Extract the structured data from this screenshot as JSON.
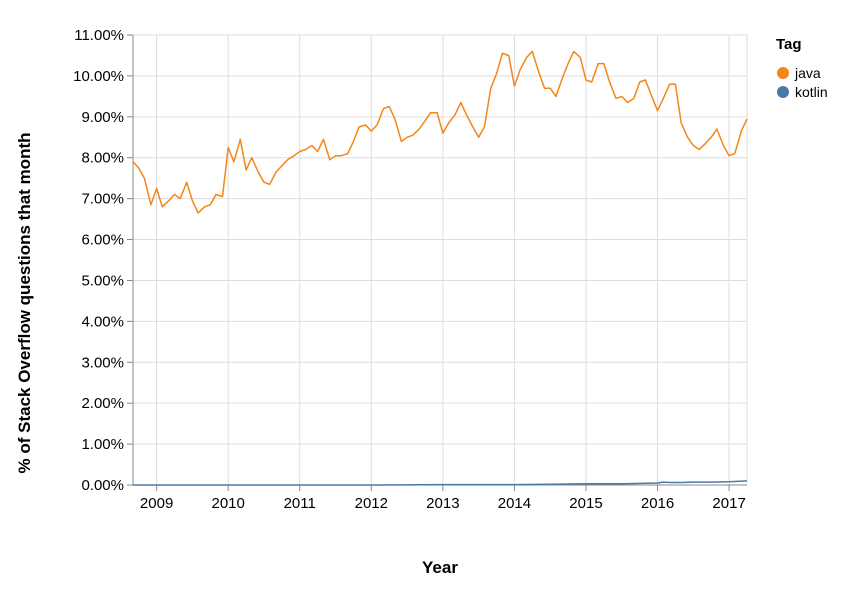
{
  "chart_data": {
    "type": "line",
    "title": "",
    "xlabel": "Year",
    "ylabel": "% of Stack Overflow questions that month",
    "ylim": [
      0,
      11
    ],
    "xlim": [
      2008.67,
      2017.25
    ],
    "y_ticks": [
      "0.00%",
      "1.00%",
      "2.00%",
      "3.00%",
      "4.00%",
      "5.00%",
      "6.00%",
      "7.00%",
      "8.00%",
      "9.00%",
      "10.00%",
      "11.00%"
    ],
    "x_ticks": [
      "2009",
      "2010",
      "2011",
      "2012",
      "2013",
      "2014",
      "2015",
      "2016",
      "2017"
    ],
    "grid": true,
    "legend": {
      "title": "Tag",
      "position": "top-right"
    },
    "series": [
      {
        "name": "java",
        "color": "#f58518",
        "x": [
          2008.67,
          2008.75,
          2008.83,
          2008.92,
          2009.0,
          2009.08,
          2009.17,
          2009.25,
          2009.33,
          2009.42,
          2009.5,
          2009.58,
          2009.67,
          2009.75,
          2009.83,
          2009.92,
          2010.0,
          2010.08,
          2010.17,
          2010.25,
          2010.33,
          2010.42,
          2010.5,
          2010.58,
          2010.67,
          2010.75,
          2010.83,
          2010.92,
          2011.0,
          2011.08,
          2011.17,
          2011.25,
          2011.33,
          2011.42,
          2011.5,
          2011.58,
          2011.67,
          2011.75,
          2011.83,
          2011.92,
          2012.0,
          2012.08,
          2012.17,
          2012.25,
          2012.33,
          2012.42,
          2012.5,
          2012.58,
          2012.67,
          2012.75,
          2012.83,
          2012.92,
          2013.0,
          2013.08,
          2013.17,
          2013.25,
          2013.33,
          2013.42,
          2013.5,
          2013.58,
          2013.67,
          2013.75,
          2013.83,
          2013.92,
          2014.0,
          2014.08,
          2014.17,
          2014.25,
          2014.33,
          2014.42,
          2014.5,
          2014.58,
          2014.67,
          2014.75,
          2014.83,
          2014.92,
          2015.0,
          2015.08,
          2015.17,
          2015.25,
          2015.33,
          2015.42,
          2015.5,
          2015.58,
          2015.67,
          2015.75,
          2015.83,
          2015.92,
          2016.0,
          2016.08,
          2016.17,
          2016.25,
          2016.33,
          2016.42,
          2016.5,
          2016.58,
          2016.67,
          2016.75,
          2016.83,
          2016.92,
          2017.0,
          2017.08,
          2017.17,
          2017.25
        ],
        "values": [
          7.9,
          7.75,
          7.5,
          6.85,
          7.25,
          6.8,
          6.95,
          7.1,
          7.0,
          7.4,
          6.95,
          6.65,
          6.8,
          6.85,
          7.1,
          7.05,
          8.25,
          7.9,
          8.45,
          7.7,
          8.0,
          7.65,
          7.4,
          7.35,
          7.65,
          7.8,
          7.95,
          8.05,
          8.15,
          8.2,
          8.3,
          8.15,
          8.45,
          7.95,
          8.05,
          8.05,
          8.1,
          8.4,
          8.75,
          8.8,
          8.65,
          8.8,
          9.2,
          9.25,
          8.95,
          8.4,
          8.5,
          8.55,
          8.7,
          8.9,
          9.1,
          9.1,
          8.6,
          8.85,
          9.05,
          9.35,
          9.05,
          8.75,
          8.5,
          8.75,
          9.7,
          10.05,
          10.55,
          10.5,
          9.75,
          10.15,
          10.45,
          10.6,
          10.15,
          9.7,
          9.7,
          9.5,
          9.95,
          10.3,
          10.6,
          10.45,
          9.9,
          9.85,
          10.3,
          10.3,
          9.85,
          9.45,
          9.5,
          9.35,
          9.45,
          9.85,
          9.9,
          9.5,
          9.15,
          9.45,
          9.8,
          9.8,
          8.85,
          8.5,
          8.3,
          8.2,
          8.35,
          8.5,
          8.7,
          8.3,
          8.05,
          8.1,
          8.65,
          8.95
        ]
      },
      {
        "name": "kotlin",
        "color": "#4c78a8",
        "x": [
          2008.67,
          2009.0,
          2010.0,
          2011.0,
          2012.0,
          2013.0,
          2013.5,
          2014.0,
          2014.5,
          2015.0,
          2015.5,
          2015.75,
          2016.0,
          2016.08,
          2016.17,
          2016.33,
          2016.5,
          2016.75,
          2017.0,
          2017.25
        ],
        "values": [
          0.0,
          0.0,
          0.0,
          0.0,
          0.0,
          0.01,
          0.01,
          0.01,
          0.02,
          0.03,
          0.03,
          0.04,
          0.05,
          0.07,
          0.06,
          0.06,
          0.07,
          0.07,
          0.08,
          0.1
        ]
      }
    ]
  }
}
